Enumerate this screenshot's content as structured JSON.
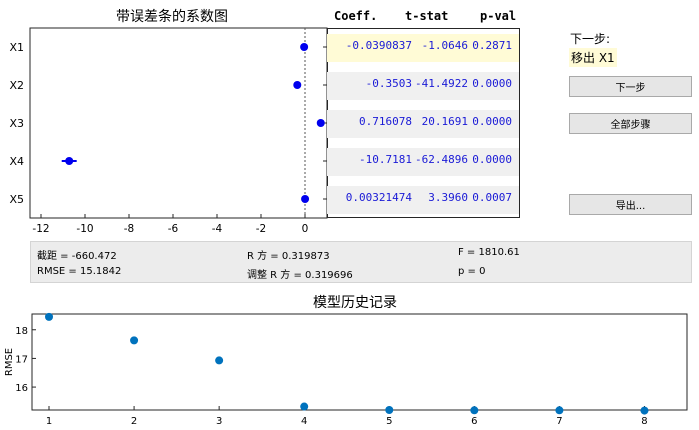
{
  "coef_plot": {
    "title": "带误差条的系数图",
    "rows": [
      "X1",
      "X2",
      "X3",
      "X4",
      "X5"
    ],
    "xticks": [
      -12,
      -10,
      -8,
      -6,
      -4,
      -2,
      0
    ],
    "xlim": [
      -12.5,
      1.0
    ],
    "points": [
      {
        "label": "X1",
        "value": -0.0390837,
        "err": 0.07
      },
      {
        "label": "X2",
        "value": -0.3503,
        "err": 0.02
      },
      {
        "label": "X3",
        "value": 0.716078,
        "err": 0.07
      },
      {
        "label": "X4",
        "value": -10.7181,
        "err": 0.34
      },
      {
        "label": "X5",
        "value": 0.00321474,
        "err": 0.002
      }
    ],
    "marker_color": "#0000ee"
  },
  "stats_table": {
    "headers": [
      "Coeff.",
      "t-stat",
      "p-val"
    ],
    "rows": [
      {
        "coeff": "-0.0390837",
        "tstat": "-1.0646",
        "pval": "0.2871",
        "selected": true
      },
      {
        "coeff": "-0.3503",
        "tstat": "-41.4922",
        "pval": "0.0000",
        "selected": false
      },
      {
        "coeff": "0.716078",
        "tstat": "20.1691",
        "pval": "0.0000",
        "selected": false
      },
      {
        "coeff": "-10.7181",
        "tstat": "-62.4896",
        "pval": "0.0000",
        "selected": false
      },
      {
        "coeff": "0.00321474",
        "tstat": "3.3960",
        "pval": "0.0007",
        "selected": false
      }
    ]
  },
  "next_step": {
    "label": "下一步:",
    "action": "移出 X1"
  },
  "buttons": {
    "next": "下一步",
    "all_steps": "全部步骤",
    "export": "导出..."
  },
  "summary": {
    "intercept": "截距 = -660.472",
    "rsq": "R 方 = 0.319873",
    "f": "F = 1810.61",
    "rmse": "RMSE = 15.1842",
    "adj_rsq": "调整 R 方 = 0.319696",
    "p": "p = 0"
  },
  "chart_data": {
    "type": "scatter",
    "title": "模型历史记录",
    "xlabel": "",
    "ylabel": "RMSE",
    "x": [
      1,
      2,
      3,
      4,
      5,
      6,
      7,
      8
    ],
    "y": [
      18.45,
      17.63,
      16.93,
      15.32,
      15.2,
      15.19,
      15.19,
      15.18
    ],
    "xticks": [
      1,
      2,
      3,
      4,
      5,
      6,
      7,
      8
    ],
    "yticks": [
      16,
      17,
      18
    ],
    "xlim": [
      0.8,
      8.5
    ],
    "ylim": [
      15.2,
      18.55
    ],
    "marker_color": "#0072bd"
  }
}
